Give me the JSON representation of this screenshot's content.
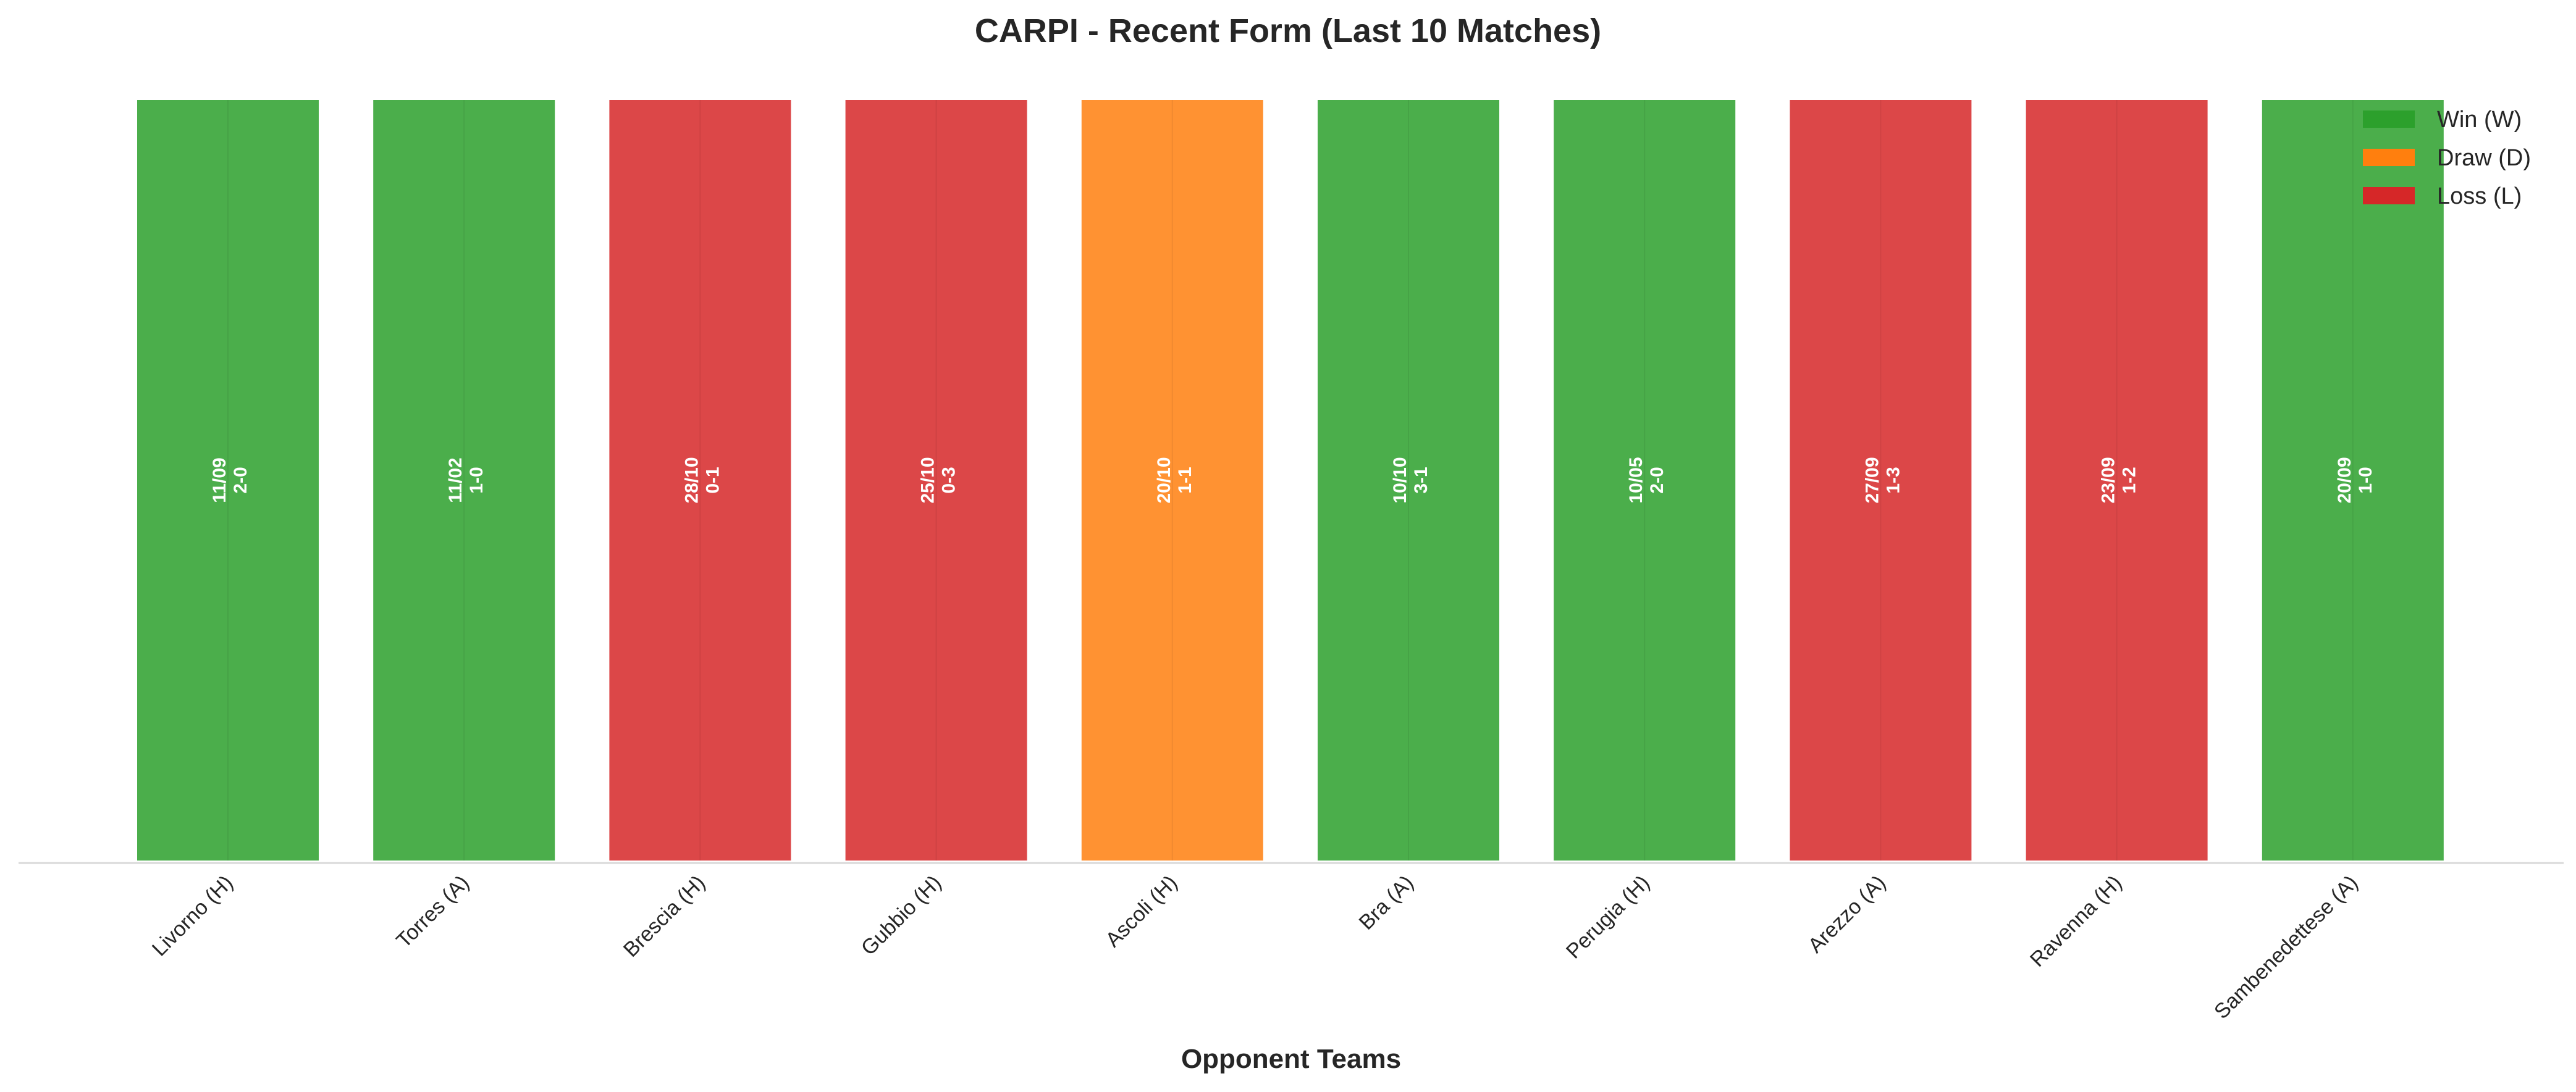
{
  "chart_data": {
    "type": "bar",
    "title": "CARPI - Recent Form (Last 10 Matches)",
    "xlabel": "Opponent Teams",
    "ylabel": "",
    "categories": [
      "Livorno (H)",
      "Torres (A)",
      "Brescia (H)",
      "Gubbio (H)",
      "Ascoli (H)",
      "Bra (A)",
      "Perugia (H)",
      "Arezzo (A)",
      "Ravenna (H)",
      "Sambenedettese (A)"
    ],
    "values": [
      1,
      1,
      1,
      1,
      1,
      1,
      1,
      1,
      1,
      1
    ],
    "results": [
      "W",
      "W",
      "L",
      "L",
      "D",
      "W",
      "W",
      "L",
      "L",
      "W"
    ],
    "dates": [
      "11/09",
      "11/02",
      "28/10",
      "25/10",
      "20/10",
      "10/10",
      "10/05",
      "27/09",
      "23/09",
      "20/09"
    ],
    "scores": [
      "2-0",
      "1-0",
      "0-1",
      "0-3",
      "1-1",
      "3-1",
      "2-0",
      "1-3",
      "1-2",
      "1-0"
    ],
    "ylim": [
      0,
      1
    ],
    "grid": false,
    "legend_position": "top-right",
    "legend": [
      {
        "key": "W",
        "label": "Win (W)"
      },
      {
        "key": "D",
        "label": "Draw (D)"
      },
      {
        "key": "L",
        "label": "Loss (L)"
      }
    ],
    "colors": {
      "W": "#2ca02c",
      "D": "#ff7f0e",
      "L": "#d62728",
      "axis": "#d9d9d9",
      "bar_edge": "#ffffff"
    }
  }
}
